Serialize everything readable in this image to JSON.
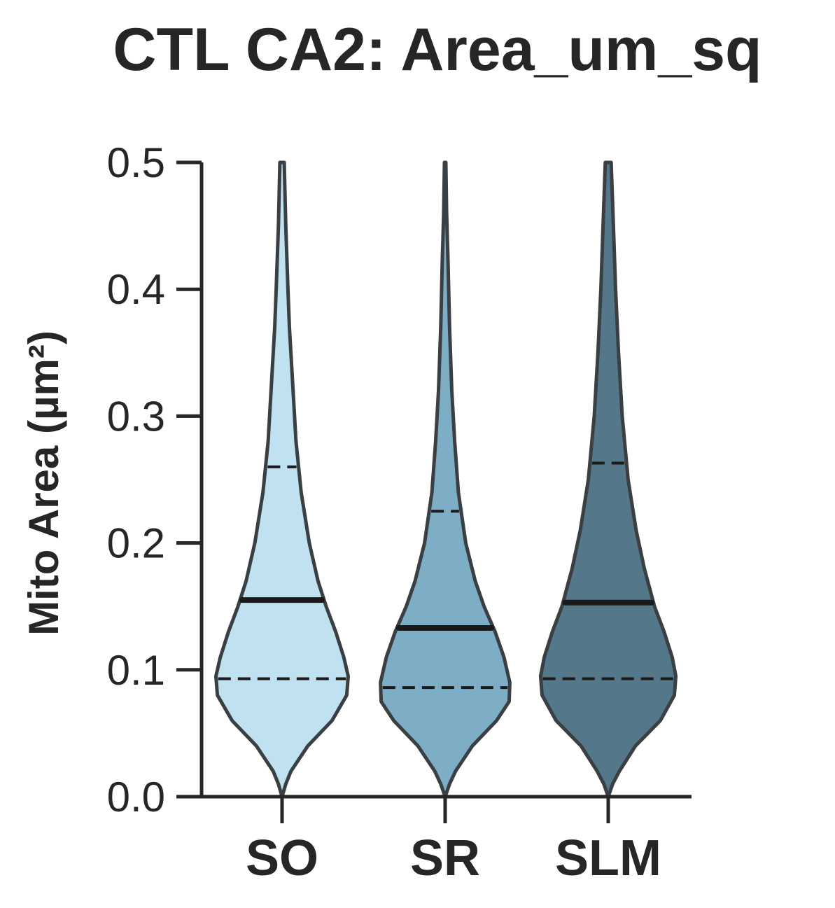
{
  "chart_data": {
    "type": "violin",
    "title": "CTL CA2: Area_um_sq",
    "xlabel": "",
    "ylabel": "Mito Area (µm²)",
    "ylim": [
      0.0,
      0.5
    ],
    "yticks": [
      "0.0",
      "0.1",
      "0.2",
      "0.3",
      "0.4",
      "0.5"
    ],
    "grid": false,
    "categories": [
      "SO",
      "SR",
      "SLM"
    ],
    "colors": [
      "#c0e1f0",
      "#7eaec6",
      "#54788a"
    ],
    "series": [
      {
        "category": "SO",
        "median": 0.155,
        "q1": 0.093,
        "q3": 0.26,
        "density": [
          [
            0.0,
            0.0
          ],
          [
            0.01,
            0.05
          ],
          [
            0.02,
            0.12
          ],
          [
            0.04,
            0.35
          ],
          [
            0.06,
            0.68
          ],
          [
            0.08,
            0.88
          ],
          [
            0.095,
            0.9
          ],
          [
            0.11,
            0.84
          ],
          [
            0.13,
            0.73
          ],
          [
            0.15,
            0.6
          ],
          [
            0.17,
            0.49
          ],
          [
            0.2,
            0.37
          ],
          [
            0.24,
            0.26
          ],
          [
            0.28,
            0.19
          ],
          [
            0.33,
            0.14
          ],
          [
            0.37,
            0.1
          ],
          [
            0.4,
            0.08
          ],
          [
            0.45,
            0.05
          ],
          [
            0.5,
            0.03
          ]
        ]
      },
      {
        "category": "SR",
        "median": 0.133,
        "q1": 0.086,
        "q3": 0.225,
        "density": [
          [
            0.0,
            0.0
          ],
          [
            0.01,
            0.06
          ],
          [
            0.02,
            0.14
          ],
          [
            0.04,
            0.37
          ],
          [
            0.06,
            0.7
          ],
          [
            0.075,
            0.87
          ],
          [
            0.09,
            0.88
          ],
          [
            0.11,
            0.8
          ],
          [
            0.13,
            0.68
          ],
          [
            0.15,
            0.53
          ],
          [
            0.17,
            0.41
          ],
          [
            0.2,
            0.28
          ],
          [
            0.24,
            0.18
          ],
          [
            0.28,
            0.13
          ],
          [
            0.32,
            0.09
          ],
          [
            0.37,
            0.06
          ],
          [
            0.42,
            0.04
          ],
          [
            0.46,
            0.02
          ],
          [
            0.5,
            0.01
          ]
        ]
      },
      {
        "category": "SLM",
        "median": 0.153,
        "q1": 0.093,
        "q3": 0.263,
        "density": [
          [
            0.0,
            0.0
          ],
          [
            0.01,
            0.06
          ],
          [
            0.02,
            0.15
          ],
          [
            0.04,
            0.37
          ],
          [
            0.06,
            0.71
          ],
          [
            0.08,
            0.9
          ],
          [
            0.095,
            0.92
          ],
          [
            0.11,
            0.87
          ],
          [
            0.13,
            0.76
          ],
          [
            0.15,
            0.63
          ],
          [
            0.18,
            0.49
          ],
          [
            0.21,
            0.38
          ],
          [
            0.25,
            0.27
          ],
          [
            0.3,
            0.19
          ],
          [
            0.35,
            0.14
          ],
          [
            0.4,
            0.1
          ],
          [
            0.45,
            0.07
          ],
          [
            0.5,
            0.04
          ]
        ]
      }
    ]
  }
}
